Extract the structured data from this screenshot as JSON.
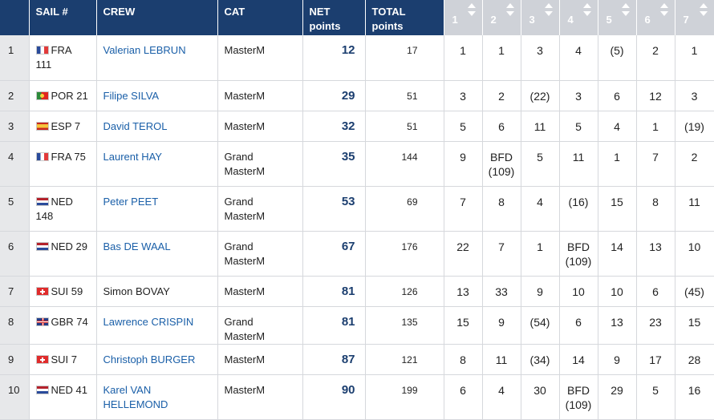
{
  "header": {
    "sail": "SAIL #",
    "crew": "CREW",
    "cat": "CAT",
    "net_line1": "NET",
    "net_line2": "points",
    "total_line1": "TOTAL",
    "total_line2": "points",
    "races": [
      "1",
      "2",
      "3",
      "4",
      "5",
      "6",
      "7"
    ]
  },
  "rows": [
    {
      "rank": "1",
      "flag": "fra",
      "sail": "FRA 111",
      "crew": "Valerian LEBRUN",
      "crew_link": true,
      "cat": "MasterM",
      "net": "12",
      "total": "17",
      "scores": [
        "1",
        "1",
        "3",
        "4",
        "(5)",
        "2",
        "1"
      ]
    },
    {
      "rank": "2",
      "flag": "por",
      "sail": "POR 21",
      "crew": "Filipe SILVA",
      "crew_link": true,
      "cat": "MasterM",
      "net": "29",
      "total": "51",
      "scores": [
        "3",
        "2",
        "(22)",
        "3",
        "6",
        "12",
        "3"
      ]
    },
    {
      "rank": "3",
      "flag": "esp",
      "sail": "ESP 7",
      "crew": "David TEROL",
      "crew_link": true,
      "cat": "MasterM",
      "net": "32",
      "total": "51",
      "scores": [
        "5",
        "6",
        "11",
        "5",
        "4",
        "1",
        "(19)"
      ]
    },
    {
      "rank": "4",
      "flag": "fra",
      "sail": "FRA 75",
      "crew": "Laurent HAY",
      "crew_link": true,
      "cat": "Grand MasterM",
      "net": "35",
      "total": "144",
      "scores": [
        "9",
        "BFD (109)",
        "5",
        "11",
        "1",
        "7",
        "2"
      ]
    },
    {
      "rank": "5",
      "flag": "ned",
      "sail": "NED 148",
      "crew": "Peter PEET",
      "crew_link": true,
      "cat": "Grand MasterM",
      "net": "53",
      "total": "69",
      "scores": [
        "7",
        "8",
        "4",
        "(16)",
        "15",
        "8",
        "11"
      ]
    },
    {
      "rank": "6",
      "flag": "ned",
      "sail": "NED 29",
      "crew": "Bas DE WAAL",
      "crew_link": true,
      "cat": "Grand MasterM",
      "net": "67",
      "total": "176",
      "scores": [
        "22",
        "7",
        "1",
        "BFD (109)",
        "14",
        "13",
        "10"
      ]
    },
    {
      "rank": "7",
      "flag": "sui",
      "sail": "SUI 59",
      "crew": "Simon BOVAY",
      "crew_link": false,
      "cat": "MasterM",
      "net": "81",
      "total": "126",
      "scores": [
        "13",
        "33",
        "9",
        "10",
        "10",
        "6",
        "(45)"
      ]
    },
    {
      "rank": "8",
      "flag": "gbr",
      "sail": "GBR 74",
      "crew": "Lawrence CRISPIN",
      "crew_link": true,
      "cat": "Grand MasterM",
      "net": "81",
      "total": "135",
      "scores": [
        "15",
        "9",
        "(54)",
        "6",
        "13",
        "23",
        "15"
      ]
    },
    {
      "rank": "9",
      "flag": "sui",
      "sail": "SUI 7",
      "crew": "Christoph BURGER",
      "crew_link": true,
      "cat": "MasterM",
      "net": "87",
      "total": "121",
      "scores": [
        "8",
        "11",
        "(34)",
        "14",
        "9",
        "17",
        "28"
      ]
    },
    {
      "rank": "10",
      "flag": "ned",
      "sail": "NED 41",
      "crew": "Karel VAN HELLEMOND",
      "crew_link": true,
      "cat": "MasterM",
      "net": "90",
      "total": "199",
      "scores": [
        "6",
        "4",
        "30",
        "BFD (109)",
        "29",
        "5",
        "16"
      ]
    }
  ],
  "colors": {
    "header_bg": "#1b3e6f",
    "race_header_bg": "#cfd2d8",
    "link": "#1a5fa8",
    "net_points": "#1b3e6f"
  }
}
